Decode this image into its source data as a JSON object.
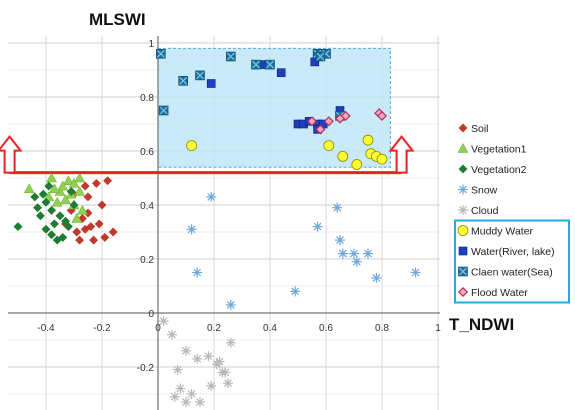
{
  "chart_data": {
    "type": "scatter",
    "ylabel": "MLSWI",
    "xlabel": "T_NDWI",
    "xlim": [
      -0.6,
      1.0
    ],
    "ylim": [
      -0.35,
      1.0
    ],
    "x_ticks": [
      "-0.4",
      "-0.2",
      "0",
      "0.2",
      "0.4",
      "0.6",
      "0.8",
      "1"
    ],
    "x_tick_values": [
      -0.4,
      -0.2,
      0,
      0.2,
      0.4,
      0.6,
      0.8,
      1.0
    ],
    "y_ticks": [
      "-0.2",
      "0",
      "0.2",
      "0.4",
      "0.6",
      "0.8",
      "1"
    ],
    "y_tick_values": [
      -0.2,
      0,
      0.2,
      0.4,
      0.6,
      0.8,
      1.0
    ],
    "grid": true,
    "legend_position": "right",
    "water_region": {
      "x": [
        0.0,
        0.83
      ],
      "y": [
        0.54,
        0.98
      ]
    },
    "threshold": {
      "y": 0.52,
      "x": [
        -0.53,
        0.87
      ],
      "arrows_x": [
        -0.53,
        0.87
      ]
    },
    "series": [
      {
        "name": "Soil",
        "marker": "diamond",
        "color": "#c0392b",
        "x": [
          -0.3,
          -0.26,
          -0.22,
          -0.25,
          -0.31,
          -0.18,
          -0.27,
          -0.2,
          -0.29,
          -0.24,
          -0.21,
          -0.16,
          -0.28,
          -0.23,
          -0.33,
          -0.19,
          -0.25,
          -0.26
        ],
        "y": [
          0.44,
          0.47,
          0.48,
          0.43,
          0.38,
          0.49,
          0.35,
          0.4,
          0.3,
          0.32,
          0.33,
          0.3,
          0.27,
          0.27,
          0.33,
          0.28,
          0.37,
          0.31
        ]
      },
      {
        "name": "Vegetation1",
        "marker": "triangle",
        "color": "#92d050",
        "x": [
          -0.38,
          -0.32,
          -0.3,
          -0.35,
          -0.28,
          -0.33,
          -0.36,
          -0.3,
          -0.27,
          -0.29,
          -0.31,
          -0.46,
          -0.39,
          -0.34,
          -0.28,
          -0.37
        ],
        "y": [
          0.5,
          0.49,
          0.48,
          0.45,
          0.45,
          0.42,
          0.41,
          0.4,
          0.38,
          0.35,
          0.44,
          0.46,
          0.43,
          0.47,
          0.5,
          0.46
        ]
      },
      {
        "name": "Vegetation2",
        "marker": "diamond",
        "color": "#1e7d32",
        "x": [
          -0.44,
          -0.4,
          -0.38,
          -0.42,
          -0.35,
          -0.33,
          -0.37,
          -0.4,
          -0.38,
          -0.36,
          -0.32,
          -0.34,
          -0.3,
          -0.5,
          -0.41,
          -0.31,
          -0.43,
          -0.39
        ],
        "y": [
          0.43,
          0.41,
          0.38,
          0.36,
          0.36,
          0.34,
          0.33,
          0.31,
          0.29,
          0.27,
          0.32,
          0.28,
          0.4,
          0.32,
          0.44,
          0.45,
          0.39,
          0.47
        ]
      },
      {
        "name": "Snow",
        "marker": "asterisk",
        "color": "#6ea8dc",
        "x": [
          0.19,
          0.12,
          0.14,
          0.26,
          0.49,
          0.57,
          0.64,
          0.65,
          0.7,
          0.71,
          0.75,
          0.78,
          0.92,
          0.66
        ],
        "y": [
          0.43,
          0.31,
          0.15,
          0.03,
          0.08,
          0.32,
          0.39,
          0.27,
          0.22,
          0.19,
          0.22,
          0.13,
          0.15,
          0.22
        ]
      },
      {
        "name": "Cloud",
        "marker": "asterisk",
        "color": "#b8b8b8",
        "x": [
          0.02,
          0.05,
          0.1,
          0.07,
          0.14,
          0.18,
          0.21,
          0.23,
          0.25,
          0.26,
          0.12,
          0.08,
          0.15,
          0.19,
          0.24,
          0.1,
          0.06,
          0.22
        ],
        "y": [
          -0.03,
          -0.08,
          -0.14,
          -0.21,
          -0.17,
          -0.16,
          -0.19,
          -0.22,
          -0.26,
          -0.11,
          -0.3,
          -0.28,
          -0.33,
          -0.27,
          -0.22,
          -0.33,
          -0.31,
          -0.18
        ]
      },
      {
        "name": "Muddy Water",
        "marker": "circle",
        "color": "#ffff33",
        "x": [
          0.12,
          0.61,
          0.66,
          0.71,
          0.75,
          0.76,
          0.78,
          0.8
        ],
        "y": [
          0.62,
          0.62,
          0.58,
          0.55,
          0.64,
          0.59,
          0.58,
          0.57
        ]
      },
      {
        "name": "Water(River, lake)",
        "marker": "square",
        "color": "#1f3fbf",
        "x": [
          0.19,
          0.37,
          0.44,
          0.56,
          0.5,
          0.52,
          0.54,
          0.57,
          0.57,
          0.59,
          0.65
        ],
        "y": [
          0.85,
          0.92,
          0.89,
          0.93,
          0.7,
          0.7,
          0.71,
          0.7,
          0.68,
          0.7,
          0.75
        ]
      },
      {
        "name": "Claen water(Sea)",
        "marker": "xsquare",
        "color": "#1b6f9a",
        "x": [
          0.01,
          0.02,
          0.09,
          0.15,
          0.26,
          0.35,
          0.4,
          0.57,
          0.6,
          0.58,
          0.65
        ],
        "y": [
          0.96,
          0.75,
          0.86,
          0.88,
          0.95,
          0.92,
          0.92,
          0.96,
          0.96,
          0.95,
          0.73
        ]
      },
      {
        "name": "Flood Water",
        "marker": "diamond",
        "color": "#f4a7c0",
        "x": [
          0.55,
          0.58,
          0.61,
          0.65,
          0.67,
          0.79,
          0.8
        ],
        "y": [
          0.71,
          0.68,
          0.71,
          0.72,
          0.73,
          0.74,
          0.73
        ]
      }
    ]
  }
}
